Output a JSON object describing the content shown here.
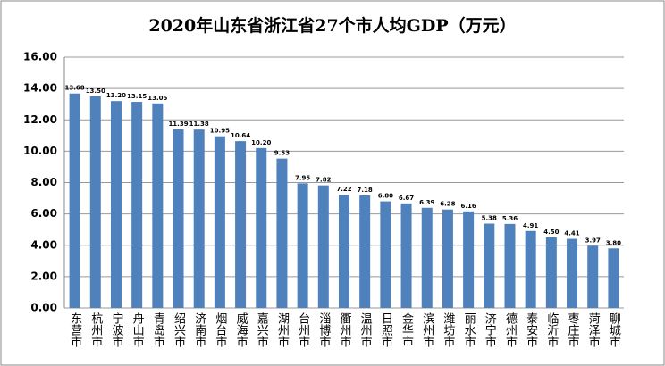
{
  "chart_data": {
    "type": "bar",
    "title": "2020年山东省浙江省27个市人均GDP（万元）",
    "categories": [
      "东营市",
      "杭州市",
      "宁波市",
      "舟山市",
      "青岛市",
      "绍兴市",
      "济南市",
      "烟台市",
      "威海市",
      "嘉兴市",
      "湖州市",
      "台州市",
      "淄博市",
      "衢州市",
      "温州市",
      "日照市",
      "金华市",
      "滨州市",
      "潍坊市",
      "丽水市",
      "济宁市",
      "德州市",
      "泰安市",
      "临沂市",
      "枣庄市",
      "菏泽市",
      "聊城市"
    ],
    "values": [
      13.68,
      13.5,
      13.2,
      13.15,
      13.05,
      11.39,
      11.38,
      10.95,
      10.64,
      10.2,
      9.53,
      7.95,
      7.82,
      7.22,
      7.18,
      6.8,
      6.67,
      6.39,
      6.28,
      6.16,
      5.38,
      5.36,
      4.91,
      4.5,
      4.41,
      3.97,
      3.8
    ],
    "value_labels": [
      "13.68",
      "13.50",
      "13.20",
      "13.15",
      "13.05",
      "11.39",
      "11.38",
      "10.95",
      "10.64",
      "10.20",
      "9.53",
      "7.95",
      "7.82",
      "7.22",
      "7.18",
      "6.80",
      "6.67",
      "6.39",
      "6.28",
      "6.16",
      "5.38",
      "5.36",
      "4.91",
      "4.50",
      "4.41",
      "3.97",
      "3.80"
    ],
    "color": "#4f81bd",
    "ylim": [
      0,
      16
    ],
    "yticks": [
      {
        "value": 0,
        "label": "0.00"
      },
      {
        "value": 2,
        "label": "2.00"
      },
      {
        "value": 4,
        "label": "4.00"
      },
      {
        "value": 6,
        "label": "6.00"
      },
      {
        "value": 8,
        "label": "8.00"
      },
      {
        "value": 10,
        "label": "10.00"
      },
      {
        "value": 12,
        "label": "12.00"
      },
      {
        "value": 14,
        "label": "14.00"
      },
      {
        "value": 16,
        "label": "16.00"
      }
    ],
    "grid": true
  }
}
